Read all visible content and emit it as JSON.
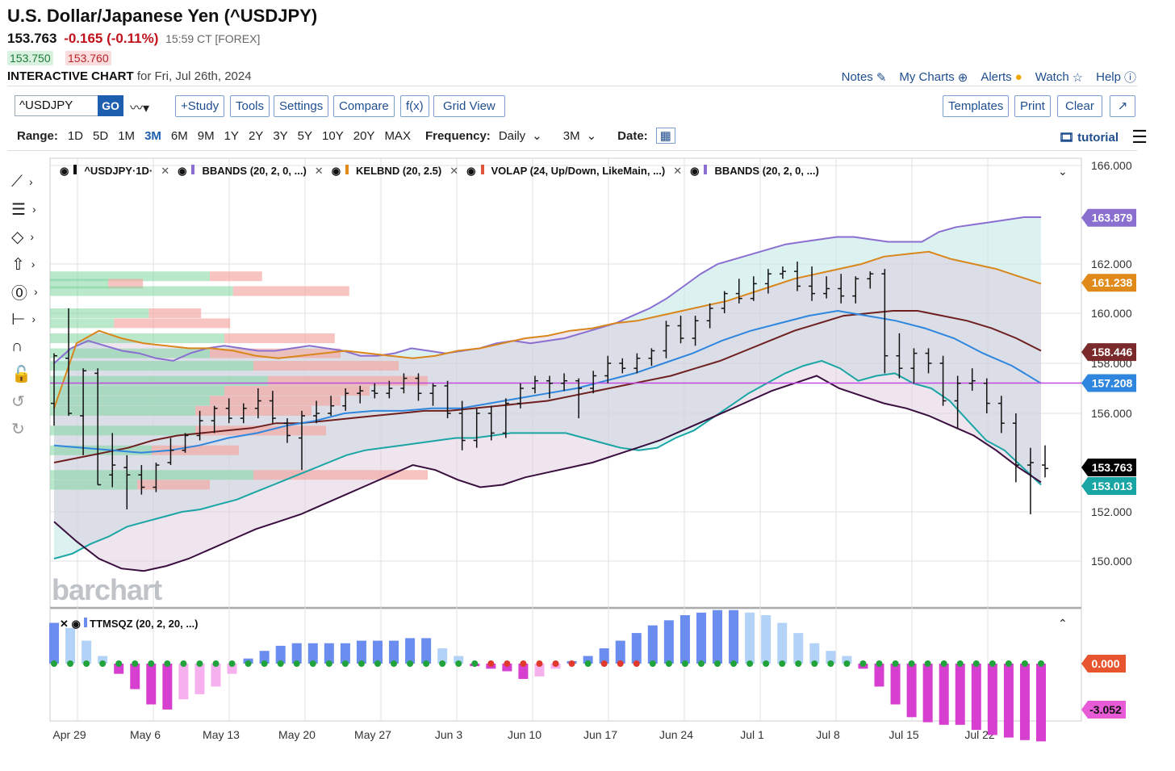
{
  "header": {
    "title": "U.S. Dollar/Japanese Yen (^USDJPY)",
    "last": "153.763",
    "change": "-0.165 (-0.11%)",
    "time": "15:59 CT [FOREX]",
    "bid": "153.750",
    "ask": "153.760",
    "chart_label": "INTERACTIVE CHART",
    "chart_date": "for Fri, Jul 26th, 2024"
  },
  "toplinks": [
    "Notes",
    "My Charts",
    "Alerts",
    "Watch",
    "Help"
  ],
  "toolbar": {
    "symbol": "^USDJPY",
    "go": "GO",
    "buttons": [
      "+Study",
      "Tools",
      "Settings",
      "Compare",
      "f(x)",
      "Grid View"
    ],
    "right_buttons": [
      "Templates",
      "Print",
      "Clear"
    ]
  },
  "range": {
    "label": "Range:",
    "options": [
      "1D",
      "5D",
      "1M",
      "3M",
      "6M",
      "9M",
      "1Y",
      "2Y",
      "3Y",
      "5Y",
      "10Y",
      "20Y",
      "MAX"
    ],
    "active": "3M",
    "frequency_label": "Frequency:",
    "frequency": "Daily",
    "period": "3M",
    "date_label": "Date:",
    "tutorial": "tutorial"
  },
  "legend": {
    "items": [
      "^USDJPY·1D·",
      "BBANDS (20, 2, 0, ...)",
      "KELBND (20, 2.5)",
      "VOLAP (24, Up/Down, LikeMain, ...)",
      "BBANDS (20, 2, 0, ...)"
    ],
    "colors": [
      "#111111",
      "#8a6fd1",
      "#e08a1a",
      "#e0563b",
      "#8a6fd1"
    ]
  },
  "sqz_legend": "TTMSQZ (20, 2, 20, ...)",
  "watermark": "barchart",
  "chart_data": {
    "type": "candlestick",
    "x_labels": [
      "Apr 29",
      "May 6",
      "May 13",
      "May 20",
      "May 27",
      "Jun 3",
      "Jun 10",
      "Jun 17",
      "Jun 24",
      "Jul 1",
      "Jul 8",
      "Jul 15",
      "Jul 22"
    ],
    "y_ticks": [
      "166.000",
      "162.000",
      "160.000",
      "158.000",
      "156.000",
      "152.000",
      "150.000"
    ],
    "ylim": [
      149,
      166
    ],
    "badges": [
      {
        "label": "163.879",
        "value": 163.879,
        "color": "#8a6fd1"
      },
      {
        "label": "161.238",
        "value": 161.238,
        "color": "#e08a1a"
      },
      {
        "label": "158.446",
        "value": 158.446,
        "color": "#7a2a2a"
      },
      {
        "label": "157.208",
        "value": 157.208,
        "color": "#2e86de"
      },
      {
        "label": "153.763",
        "value": 153.763,
        "color": "#000000"
      },
      {
        "label": "153.013",
        "value": 153.013,
        "color": "#1aa5a5"
      }
    ],
    "ohlc": [
      [
        156.4,
        158.4,
        155.5,
        158.3
      ],
      [
        158.2,
        160.2,
        155.9,
        156.0
      ],
      [
        155.9,
        157.8,
        154.3,
        157.7
      ],
      [
        157.6,
        157.8,
        153.1,
        153.1
      ],
      [
        153.5,
        155.2,
        153.0,
        153.9
      ],
      [
        153.8,
        154.3,
        152.1,
        153.5
      ],
      [
        153.5,
        153.9,
        152.7,
        153.0
      ],
      [
        153.0,
        154.0,
        152.8,
        153.9
      ],
      [
        154.0,
        155.0,
        153.9,
        154.5
      ],
      [
        154.5,
        155.2,
        154.4,
        155.1
      ],
      [
        155.1,
        156.1,
        154.9,
        155.7
      ],
      [
        155.7,
        156.3,
        155.2,
        156.2
      ],
      [
        156.2,
        156.6,
        155.6,
        155.8
      ],
      [
        155.8,
        156.4,
        155.6,
        156.2
      ],
      [
        156.2,
        157.0,
        155.8,
        156.5
      ],
      [
        156.5,
        156.9,
        155.6,
        155.8
      ],
      [
        155.6,
        155.8,
        154.8,
        155.1
      ],
      [
        155.0,
        156.1,
        153.7,
        155.9
      ],
      [
        155.9,
        156.5,
        155.6,
        156.0
      ],
      [
        156.0,
        156.7,
        155.9,
        156.3
      ],
      [
        156.3,
        157.0,
        156.1,
        156.8
      ],
      [
        156.8,
        157.1,
        156.4,
        156.9
      ],
      [
        156.9,
        157.2,
        156.6,
        156.8
      ],
      [
        156.8,
        157.3,
        156.6,
        157.0
      ],
      [
        157.0,
        157.6,
        156.8,
        157.4
      ],
      [
        157.4,
        157.6,
        156.5,
        156.8
      ],
      [
        156.8,
        157.2,
        156.3,
        157.1
      ],
      [
        157.1,
        157.3,
        155.8,
        156.0
      ],
      [
        156.0,
        156.5,
        154.5,
        154.9
      ],
      [
        154.9,
        156.2,
        154.6,
        156.0
      ],
      [
        156.0,
        156.3,
        154.9,
        155.2
      ],
      [
        155.2,
        156.6,
        155.0,
        156.4
      ],
      [
        156.4,
        157.2,
        156.2,
        157.0
      ],
      [
        157.0,
        157.5,
        156.8,
        157.3
      ],
      [
        157.3,
        157.5,
        156.6,
        157.2
      ],
      [
        157.2,
        157.6,
        156.9,
        157.3
      ],
      [
        157.3,
        157.4,
        155.8,
        157.0
      ],
      [
        157.0,
        157.7,
        156.8,
        157.5
      ],
      [
        157.5,
        158.3,
        157.2,
        158.0
      ],
      [
        158.0,
        158.2,
        157.6,
        157.8
      ],
      [
        157.8,
        158.4,
        157.6,
        158.2
      ],
      [
        158.2,
        158.6,
        157.9,
        158.5
      ],
      [
        158.5,
        159.7,
        158.2,
        159.5
      ],
      [
        159.5,
        159.9,
        158.8,
        159.0
      ],
      [
        159.0,
        159.9,
        158.7,
        159.7
      ],
      [
        159.7,
        160.4,
        159.4,
        160.2
      ],
      [
        160.2,
        160.9,
        160.0,
        160.8
      ],
      [
        160.8,
        161.4,
        160.4,
        160.6
      ],
      [
        160.6,
        161.5,
        160.5,
        161.2
      ],
      [
        161.2,
        161.8,
        160.8,
        161.6
      ],
      [
        161.6,
        161.9,
        161.4,
        161.7
      ],
      [
        161.7,
        162.1,
        160.9,
        161.1
      ],
      [
        161.1,
        161.9,
        160.5,
        160.8
      ],
      [
        160.8,
        161.5,
        160.6,
        161.0
      ],
      [
        161.0,
        161.6,
        160.4,
        160.7
      ],
      [
        160.7,
        161.5,
        160.4,
        161.4
      ],
      [
        161.4,
        161.7,
        161.0,
        161.6
      ],
      [
        161.6,
        161.8,
        157.6,
        158.3
      ],
      [
        158.3,
        159.2,
        157.4,
        157.8
      ],
      [
        157.8,
        158.6,
        157.2,
        158.4
      ],
      [
        158.4,
        158.6,
        157.6,
        158.0
      ],
      [
        158.0,
        158.3,
        156.3,
        156.5
      ],
      [
        156.5,
        157.5,
        155.4,
        157.2
      ],
      [
        157.2,
        157.8,
        156.9,
        157.3
      ],
      [
        157.2,
        157.4,
        156.0,
        156.4
      ],
      [
        156.4,
        156.7,
        155.2,
        155.6
      ],
      [
        155.6,
        156.0,
        153.2,
        153.9
      ],
      [
        153.9,
        154.6,
        151.9,
        154.0
      ],
      [
        153.9,
        154.7,
        153.4,
        153.76
      ]
    ],
    "bb_upper": [
      158.0,
      158.6,
      158.9,
      158.7,
      158.5,
      158.4,
      158.2,
      158.1,
      158.4,
      158.6,
      158.7,
      158.6,
      158.5,
      158.5,
      158.6,
      158.7,
      158.6,
      158.5,
      158.3,
      158.3,
      158.4,
      158.6,
      158.5,
      158.4,
      158.5,
      158.6,
      158.8,
      158.9,
      158.8,
      158.9,
      159.0,
      159.2,
      159.4,
      159.6,
      159.9,
      160.2,
      160.6,
      161.1,
      161.6,
      162.0,
      162.2,
      162.4,
      162.6,
      162.8,
      162.9,
      163.0,
      163.1,
      163.1,
      163.0,
      162.9,
      162.9,
      162.9,
      163.3,
      163.5,
      163.6,
      163.7,
      163.8,
      163.9,
      163.9
    ],
    "bb_lower": [
      150.1,
      150.3,
      150.7,
      151.0,
      151.4,
      151.6,
      151.8,
      152.0,
      152.1,
      152.3,
      152.5,
      152.8,
      153.1,
      153.4,
      153.7,
      154.0,
      154.3,
      154.5,
      154.6,
      154.7,
      154.8,
      154.9,
      155.0,
      155.0,
      155.1,
      155.2,
      155.2,
      155.2,
      155.2,
      155.0,
      154.8,
      154.6,
      154.5,
      154.6,
      155.0,
      155.3,
      155.8,
      156.3,
      156.8,
      157.2,
      157.6,
      157.9,
      158.1,
      157.8,
      157.3,
      157.5,
      157.6,
      157.2,
      157.0,
      156.5,
      155.7,
      154.9,
      154.5,
      153.8,
      153.1
    ],
    "bb2_lower": [
      151.6,
      150.8,
      150.1,
      149.7,
      149.6,
      149.8,
      150.1,
      150.5,
      150.9,
      151.3,
      151.6,
      151.9,
      152.3,
      152.7,
      153.1,
      153.5,
      153.9,
      153.7,
      153.3,
      153.0,
      153.1,
      153.4,
      153.6,
      153.8,
      154.0,
      154.3,
      154.6,
      154.9,
      155.3,
      155.7,
      156.1,
      156.5,
      156.9,
      157.2,
      157.5,
      157.0,
      156.7,
      156.4,
      156.2,
      155.9,
      155.5,
      155.1,
      154.5,
      153.8,
      153.2
    ],
    "kc_upper": [
      156.2,
      158.8,
      159.3,
      159.0,
      158.8,
      158.7,
      158.6,
      158.6,
      158.5,
      158.3,
      158.2,
      158.3,
      158.4,
      158.5,
      158.4,
      158.3,
      158.2,
      158.3,
      158.5,
      158.6,
      158.8,
      159.0,
      159.1,
      159.3,
      159.4,
      159.6,
      159.7,
      159.9,
      160.1,
      160.3,
      160.5,
      160.8,
      161.1,
      161.4,
      161.6,
      161.8,
      162.0,
      162.3,
      162.4,
      162.5,
      162.2,
      162.0,
      161.8,
      161.5,
      161.2
    ],
    "kc_mid": [
      154.0,
      154.2,
      154.4,
      154.6,
      154.9,
      155.1,
      155.2,
      155.3,
      155.4,
      155.6,
      155.6,
      155.7,
      155.8,
      155.9,
      156.0,
      156.1,
      156.1,
      156.2,
      156.3,
      156.4,
      156.5,
      156.7,
      156.9,
      157.1,
      157.3,
      157.5,
      157.8,
      158.1,
      158.5,
      158.9,
      159.3,
      159.6,
      159.9,
      160.0,
      160.1,
      160.1,
      159.9,
      159.7,
      159.4,
      159.0,
      158.5
    ],
    "sma_mid": [
      154.7,
      154.6,
      154.5,
      154.4,
      154.5,
      154.7,
      155.0,
      155.2,
      155.5,
      155.7,
      156.0,
      156.1,
      156.1,
      156.2,
      156.2,
      156.4,
      156.6,
      156.8,
      157.0,
      157.3,
      157.6,
      158.0,
      158.4,
      158.9,
      159.3,
      159.6,
      159.9,
      160.1,
      159.9,
      159.7,
      159.4,
      159.0,
      158.4,
      157.9,
      157.2
    ],
    "bb_mid_line": 157.208,
    "squeeze_values": [
      1.6,
      1.4,
      0.9,
      0.3,
      -0.4,
      -1.0,
      -1.6,
      -1.8,
      -1.4,
      -1.2,
      -0.9,
      -0.4,
      0.2,
      0.5,
      0.7,
      0.8,
      0.8,
      0.8,
      0.8,
      0.9,
      0.9,
      0.9,
      1.0,
      1.0,
      0.6,
      0.3,
      -0.1,
      -0.2,
      -0.3,
      -0.6,
      -0.5,
      -0.2,
      0.1,
      0.3,
      0.6,
      0.9,
      1.2,
      1.5,
      1.7,
      1.9,
      2.0,
      2.1,
      2.1,
      2.0,
      1.9,
      1.6,
      1.2,
      0.8,
      0.5,
      0.3,
      -0.2,
      -0.9,
      -1.6,
      -2.1,
      -2.3,
      -2.4,
      -2.4,
      -2.6,
      -2.8,
      -2.9,
      -3.0,
      -3.05
    ],
    "sqz_badges": [
      {
        "label": "0.000",
        "color": "#e8542e"
      },
      {
        "label": "-3.052",
        "color": "#e85bd6"
      }
    ],
    "sqz_ylim": [
      -3.6,
      1.9
    ],
    "volume_profile": [
      {
        "price": 161.5,
        "up": 0.55,
        "down": 0.18
      },
      {
        "price": 161.2,
        "up": 0.2,
        "down": 0.12
      },
      {
        "price": 160.9,
        "up": 0.63,
        "down": 0.4
      },
      {
        "price": 160.0,
        "up": 0.34,
        "down": 0.18
      },
      {
        "price": 159.6,
        "up": 0.22,
        "down": 0.4
      },
      {
        "price": 159.0,
        "up": 0.6,
        "down": 0.38
      },
      {
        "price": 158.4,
        "up": 0.55,
        "down": 0.45
      },
      {
        "price": 157.9,
        "up": 0.7,
        "down": 0.5
      },
      {
        "price": 157.3,
        "up": 0.75,
        "down": 0.55
      },
      {
        "price": 156.9,
        "up": 0.6,
        "down": 0.5
      },
      {
        "price": 156.5,
        "up": 0.55,
        "down": 0.45
      },
      {
        "price": 156.1,
        "up": 0.5,
        "down": 0.4
      },
      {
        "price": 155.3,
        "up": 0.5,
        "down": 0.45
      },
      {
        "price": 154.5,
        "up": 0.35,
        "down": 0.3
      },
      {
        "price": 153.5,
        "up": 0.7,
        "down": 0.6
      },
      {
        "price": 153.1,
        "up": 0.3,
        "down": 0.25
      }
    ]
  }
}
